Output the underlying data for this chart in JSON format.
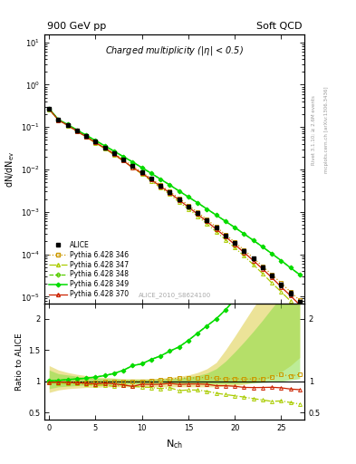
{
  "title_top_left": "900 GeV pp",
  "title_top_right": "Soft QCD",
  "plot_title": "Charged multiplicity (|\\u03b7| < 0.5)",
  "ylabel_top": "dN/dN$_{\\mathrm{ev}}$",
  "ylabel_bottom": "Ratio to ALICE",
  "xlabel": "N$_{\\mathrm{ch}}$",
  "right_label_top": "Rivet 3.1.10; ≥ 2.6M events",
  "right_label_bottom": "mcplots.cern.ch [arXiv:1306.3436]",
  "watermark": "ALICE_2010_S8624100",
  "nch": [
    0,
    1,
    2,
    3,
    4,
    5,
    6,
    7,
    8,
    9,
    10,
    11,
    12,
    13,
    14,
    15,
    16,
    17,
    18,
    19,
    20,
    21,
    22,
    23,
    24,
    25,
    26,
    27
  ],
  "alice": [
    0.27,
    0.148,
    0.112,
    0.082,
    0.061,
    0.045,
    0.033,
    0.024,
    0.017,
    0.012,
    0.0086,
    0.006,
    0.0042,
    0.0029,
    0.002,
    0.00136,
    0.00092,
    0.00062,
    0.00042,
    0.00028,
    0.000185,
    0.000122,
    7.9e-05,
    5e-05,
    3.1e-05,
    1.9e-05,
    1.2e-05,
    7.4e-06
  ],
  "alice_err": [
    0.01,
    0.005,
    0.004,
    0.003,
    0.002,
    0.0015,
    0.001,
    0.0008,
    0.0006,
    0.0004,
    0.0003,
    0.0002,
    0.00015,
    0.0001,
    8e-05,
    6e-05,
    4e-05,
    3e-05,
    2e-05,
    1.5e-05,
    1e-05,
    8e-06,
    6e-06,
    4e-06,
    3e-06,
    2e-06,
    1.5e-06,
    1e-06
  ],
  "p346": [
    0.268,
    0.147,
    0.111,
    0.081,
    0.06,
    0.044,
    0.033,
    0.024,
    0.017,
    0.012,
    0.0086,
    0.0061,
    0.0043,
    0.003,
    0.0021,
    0.00143,
    0.00097,
    0.00066,
    0.00044,
    0.00029,
    0.000193,
    0.000126,
    8.2e-05,
    5.2e-05,
    3.3e-05,
    2.1e-05,
    1.3e-05,
    8.2e-06
  ],
  "p347": [
    0.263,
    0.144,
    0.108,
    0.079,
    0.058,
    0.042,
    0.031,
    0.022,
    0.016,
    0.011,
    0.0078,
    0.0054,
    0.0037,
    0.0026,
    0.0017,
    0.00117,
    0.00079,
    0.00052,
    0.00034,
    0.00022,
    0.000142,
    9.1e-05,
    5.7e-05,
    3.5e-05,
    2.1e-05,
    1.3e-05,
    7.9e-06,
    4.7e-06
  ],
  "p348": [
    0.272,
    0.15,
    0.115,
    0.085,
    0.064,
    0.048,
    0.036,
    0.027,
    0.02,
    0.015,
    0.011,
    0.0081,
    0.0059,
    0.0043,
    0.0031,
    0.00225,
    0.00163,
    0.00117,
    0.00084,
    0.0006,
    0.000428,
    0.000303,
    0.000213,
    0.000149,
    0.000103,
    7.1e-05,
    4.8e-05,
    3.3e-05
  ],
  "p349": [
    0.272,
    0.15,
    0.115,
    0.085,
    0.064,
    0.048,
    0.036,
    0.027,
    0.02,
    0.015,
    0.011,
    0.0081,
    0.0059,
    0.0043,
    0.0031,
    0.00225,
    0.00163,
    0.00117,
    0.00084,
    0.0006,
    0.000428,
    0.000303,
    0.000213,
    0.000149,
    0.000103,
    7.1e-05,
    4.8e-05,
    3.3e-05
  ],
  "p370": [
    0.265,
    0.146,
    0.11,
    0.08,
    0.059,
    0.043,
    0.032,
    0.023,
    0.016,
    0.011,
    0.0082,
    0.0057,
    0.004,
    0.0028,
    0.0019,
    0.0013,
    0.00088,
    0.00059,
    0.00039,
    0.00026,
    0.00017,
    0.00011,
    7.1e-05,
    4.5e-05,
    2.8e-05,
    1.7e-05,
    1.05e-05,
    6.4e-06
  ],
  "color_346": "#cc9900",
  "color_347": "#aacc00",
  "color_348": "#55cc00",
  "color_349": "#00dd00",
  "color_370": "#cc2200",
  "color_alice": "#000000",
  "band_yellow_lo": [
    0.82,
    0.86,
    0.88,
    0.89,
    0.9,
    0.9,
    0.91,
    0.91,
    0.91,
    0.91,
    0.91,
    0.91,
    0.91,
    0.91,
    0.91,
    0.91,
    0.91,
    0.91,
    0.91,
    0.92,
    0.93,
    0.95,
    0.98,
    1.02,
    1.07,
    1.15,
    1.25,
    1.38
  ],
  "band_yellow_hi": [
    1.25,
    1.18,
    1.14,
    1.11,
    1.09,
    1.07,
    1.06,
    1.05,
    1.04,
    1.04,
    1.04,
    1.04,
    1.05,
    1.06,
    1.08,
    1.1,
    1.14,
    1.2,
    1.3,
    1.5,
    1.72,
    1.95,
    2.18,
    2.38,
    2.55,
    2.68,
    2.78,
    2.88
  ],
  "band_green_lo": [
    0.88,
    0.91,
    0.92,
    0.93,
    0.94,
    0.95,
    0.95,
    0.95,
    0.96,
    0.96,
    0.96,
    0.96,
    0.96,
    0.96,
    0.96,
    0.96,
    0.96,
    0.96,
    0.96,
    0.96,
    0.96,
    0.97,
    0.97,
    0.98,
    0.99,
    1.0,
    1.02,
    1.04
  ],
  "band_green_hi": [
    1.18,
    1.12,
    1.1,
    1.08,
    1.06,
    1.05,
    1.04,
    1.04,
    1.03,
    1.03,
    1.03,
    1.03,
    1.04,
    1.04,
    1.05,
    1.07,
    1.09,
    1.13,
    1.2,
    1.32,
    1.47,
    1.63,
    1.8,
    1.98,
    2.17,
    2.35,
    2.52,
    2.7
  ]
}
